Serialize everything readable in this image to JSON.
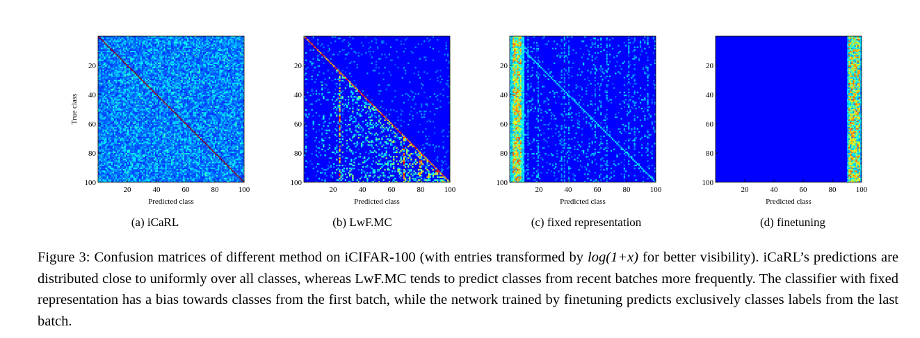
{
  "figure": {
    "caption_prefix": "Figure 3: Confusion matrices of different method on iCIFAR-100 (with entries transformed by ",
    "caption_math": "log(1+x)",
    "caption_rest": " for better visibility). iCaRL’s predictions are distributed close to uniformly over all classes, whereas LwF.MC tends to predict classes from recent batches more frequently. The classifier with fixed representation has a bias towards classes from the first batch, while the network trained by finetuning predicts exclusively classes labels from the last batch."
  },
  "chart_data": [
    {
      "type": "heatmap",
      "caption": "(a) iCaRL",
      "xlabel": "Predicted class",
      "ylabel": "True class",
      "x_ticks": [
        "20",
        "40",
        "60",
        "80",
        "100"
      ],
      "y_ticks": [
        "20",
        "40",
        "60",
        "80",
        "100"
      ],
      "n_classes": 100,
      "pattern": "uniform-with-diagonal",
      "colormap": [
        "#00008f",
        "#0000ff",
        "#00ffff",
        "#ffff00",
        "#ff0000"
      ]
    },
    {
      "type": "heatmap",
      "caption": "(b) LwF.MC",
      "xlabel": "Predicted class",
      "ylabel": "",
      "x_ticks": [
        "20",
        "40",
        "60",
        "80",
        "100"
      ],
      "y_ticks": [
        "20",
        "40",
        "60",
        "80",
        "100"
      ],
      "n_classes": 100,
      "pattern": "recent-bias",
      "colormap": [
        "#00008f",
        "#0000ff",
        "#00ffff",
        "#ffff00",
        "#ff0000"
      ]
    },
    {
      "type": "heatmap",
      "caption": "(c) fixed representation",
      "xlabel": "Predicted class",
      "ylabel": "",
      "x_ticks": [
        "20",
        "40",
        "60",
        "80",
        "100"
      ],
      "y_ticks": [
        "20",
        "40",
        "60",
        "80",
        "100"
      ],
      "n_classes": 100,
      "pattern": "first-batch-bias",
      "colormap": [
        "#00008f",
        "#0000ff",
        "#00ffff",
        "#ffff00",
        "#ff0000"
      ]
    },
    {
      "type": "heatmap",
      "caption": "(d) finetuning",
      "xlabel": "Predicted class",
      "ylabel": "",
      "x_ticks": [
        "20",
        "40",
        "60",
        "80",
        "100"
      ],
      "y_ticks": [
        "20",
        "40",
        "60",
        "80",
        "100"
      ],
      "n_classes": 100,
      "pattern": "last-batch-only",
      "colormap": [
        "#00008f",
        "#0000ff",
        "#00ffff",
        "#ffff00",
        "#ff0000"
      ]
    }
  ]
}
